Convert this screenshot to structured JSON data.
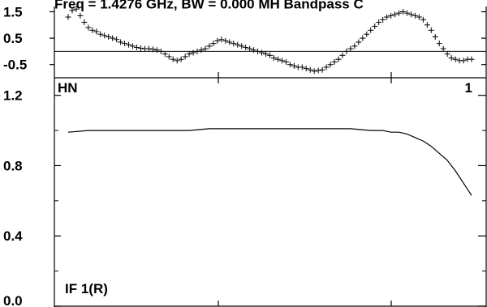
{
  "header": {
    "title": "Freq = 1.4276 GHz, BW = 0.000 MH  Bandpass C"
  },
  "panels": {
    "top": {
      "yticks": [
        "1.5",
        "0.5",
        "-0.5"
      ]
    },
    "bottom": {
      "yticks": [
        "1.2",
        "0.8",
        "0.4",
        "0.0"
      ],
      "label_left": "HN",
      "label_right": "1",
      "label_bottom": "IF 1(R)"
    }
  },
  "chart_data": [
    {
      "type": "scatter",
      "marker": "plus",
      "ylim": [
        -1.0,
        1.7
      ],
      "yticks": [
        1.5,
        0.5,
        -0.5
      ],
      "reference_line": 0.0,
      "x_range": [
        0,
        1
      ],
      "x": [
        0.0,
        0.01,
        0.02,
        0.03,
        0.04,
        0.05,
        0.06,
        0.07,
        0.08,
        0.09,
        0.1,
        0.11,
        0.12,
        0.13,
        0.14,
        0.15,
        0.16,
        0.17,
        0.18,
        0.19,
        0.2,
        0.21,
        0.22,
        0.23,
        0.24,
        0.25,
        0.26,
        0.27,
        0.28,
        0.29,
        0.3,
        0.31,
        0.32,
        0.33,
        0.34,
        0.35,
        0.36,
        0.37,
        0.38,
        0.39,
        0.4,
        0.41,
        0.42,
        0.43,
        0.44,
        0.45,
        0.46,
        0.47,
        0.48,
        0.49,
        0.5,
        0.51,
        0.52,
        0.53,
        0.54,
        0.55,
        0.56,
        0.57,
        0.58,
        0.59,
        0.6,
        0.61,
        0.62,
        0.63,
        0.64,
        0.65,
        0.66,
        0.67,
        0.68,
        0.69,
        0.7,
        0.71,
        0.72,
        0.73,
        0.74,
        0.75,
        0.76,
        0.77,
        0.78,
        0.79,
        0.8,
        0.81,
        0.82,
        0.83,
        0.84,
        0.85,
        0.86,
        0.87,
        0.88,
        0.89,
        0.9,
        0.91,
        0.92,
        0.93,
        0.94,
        0.95,
        0.96,
        0.97,
        0.98,
        0.99,
        1.0
      ],
      "y": [
        1.3,
        1.55,
        1.6,
        1.35,
        1.1,
        0.9,
        0.8,
        0.75,
        0.65,
        0.6,
        0.55,
        0.5,
        0.45,
        0.35,
        0.3,
        0.25,
        0.2,
        0.15,
        0.12,
        0.1,
        0.1,
        0.08,
        0.05,
        0.0,
        -0.1,
        -0.2,
        -0.3,
        -0.35,
        -0.3,
        -0.2,
        -0.1,
        -0.05,
        0.0,
        0.05,
        0.1,
        0.2,
        0.3,
        0.4,
        0.45,
        0.4,
        0.35,
        0.3,
        0.25,
        0.2,
        0.15,
        0.1,
        0.05,
        0.0,
        -0.05,
        -0.1,
        -0.15,
        -0.25,
        -0.3,
        -0.35,
        -0.4,
        -0.5,
        -0.55,
        -0.6,
        -0.6,
        -0.65,
        -0.7,
        -0.75,
        -0.72,
        -0.7,
        -0.6,
        -0.5,
        -0.4,
        -0.3,
        -0.15,
        0.0,
        0.1,
        0.2,
        0.35,
        0.5,
        0.65,
        0.8,
        0.95,
        1.1,
        1.2,
        1.3,
        1.35,
        1.4,
        1.45,
        1.5,
        1.45,
        1.4,
        1.35,
        1.3,
        1.2,
        1.0,
        0.8,
        0.55,
        0.3,
        0.1,
        -0.1,
        -0.25,
        -0.3,
        -0.35,
        -0.35,
        -0.3,
        -0.3
      ]
    },
    {
      "type": "line",
      "ylim": [
        0.0,
        1.3
      ],
      "yticks": [
        1.2,
        0.8,
        0.4,
        0.0
      ],
      "x_range": [
        0,
        1
      ],
      "x": [
        0.0,
        0.05,
        0.1,
        0.15,
        0.2,
        0.25,
        0.3,
        0.35,
        0.4,
        0.45,
        0.5,
        0.55,
        0.6,
        0.65,
        0.7,
        0.75,
        0.78,
        0.8,
        0.82,
        0.84,
        0.86,
        0.88,
        0.9,
        0.92,
        0.94,
        0.96,
        0.98,
        1.0
      ],
      "y": [
        0.99,
        1.0,
        1.0,
        1.0,
        1.0,
        1.0,
        1.0,
        1.01,
        1.01,
        1.01,
        1.01,
        1.01,
        1.01,
        1.01,
        1.01,
        1.0,
        1.0,
        0.99,
        0.99,
        0.98,
        0.96,
        0.94,
        0.91,
        0.87,
        0.83,
        0.77,
        0.7,
        0.63
      ]
    }
  ]
}
